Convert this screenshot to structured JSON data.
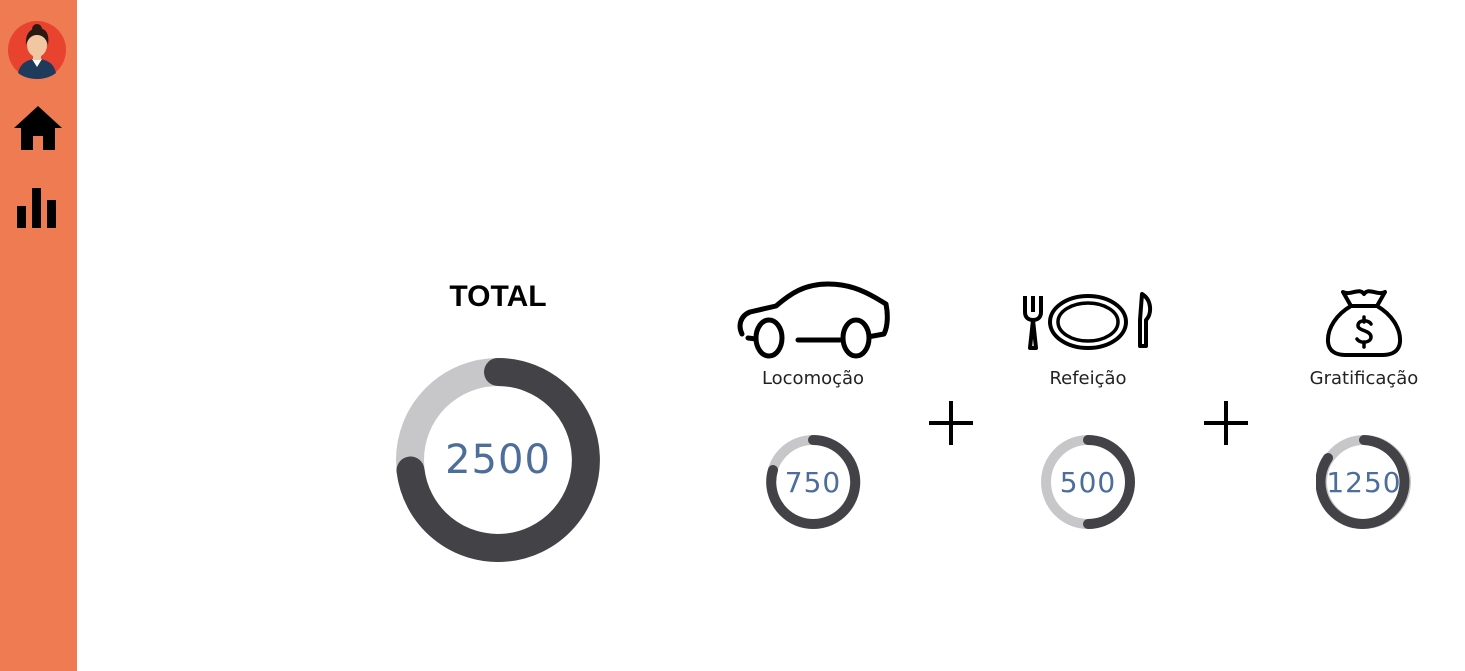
{
  "sidebar": {
    "items": [
      {
        "name": "avatar",
        "icon": "user-avatar-icon"
      },
      {
        "name": "home",
        "icon": "home-icon"
      },
      {
        "name": "stats",
        "icon": "bar-chart-icon"
      }
    ],
    "background": "#ef7b53"
  },
  "total": {
    "title": "TOTAL",
    "value": "2500"
  },
  "categories": [
    {
      "label": "Locomoção",
      "icon": "car-icon",
      "value": "750"
    },
    {
      "label": "Refeição",
      "icon": "plate-cutlery-icon",
      "value": "500"
    },
    {
      "label": "Gratificação",
      "icon": "money-bag-icon",
      "value": "1250"
    }
  ],
  "operators": [
    "+",
    "+"
  ],
  "colors": {
    "ring_fill": "#434347",
    "ring_track": "#c7c7c9",
    "value_text": "#4d6d9a"
  }
}
